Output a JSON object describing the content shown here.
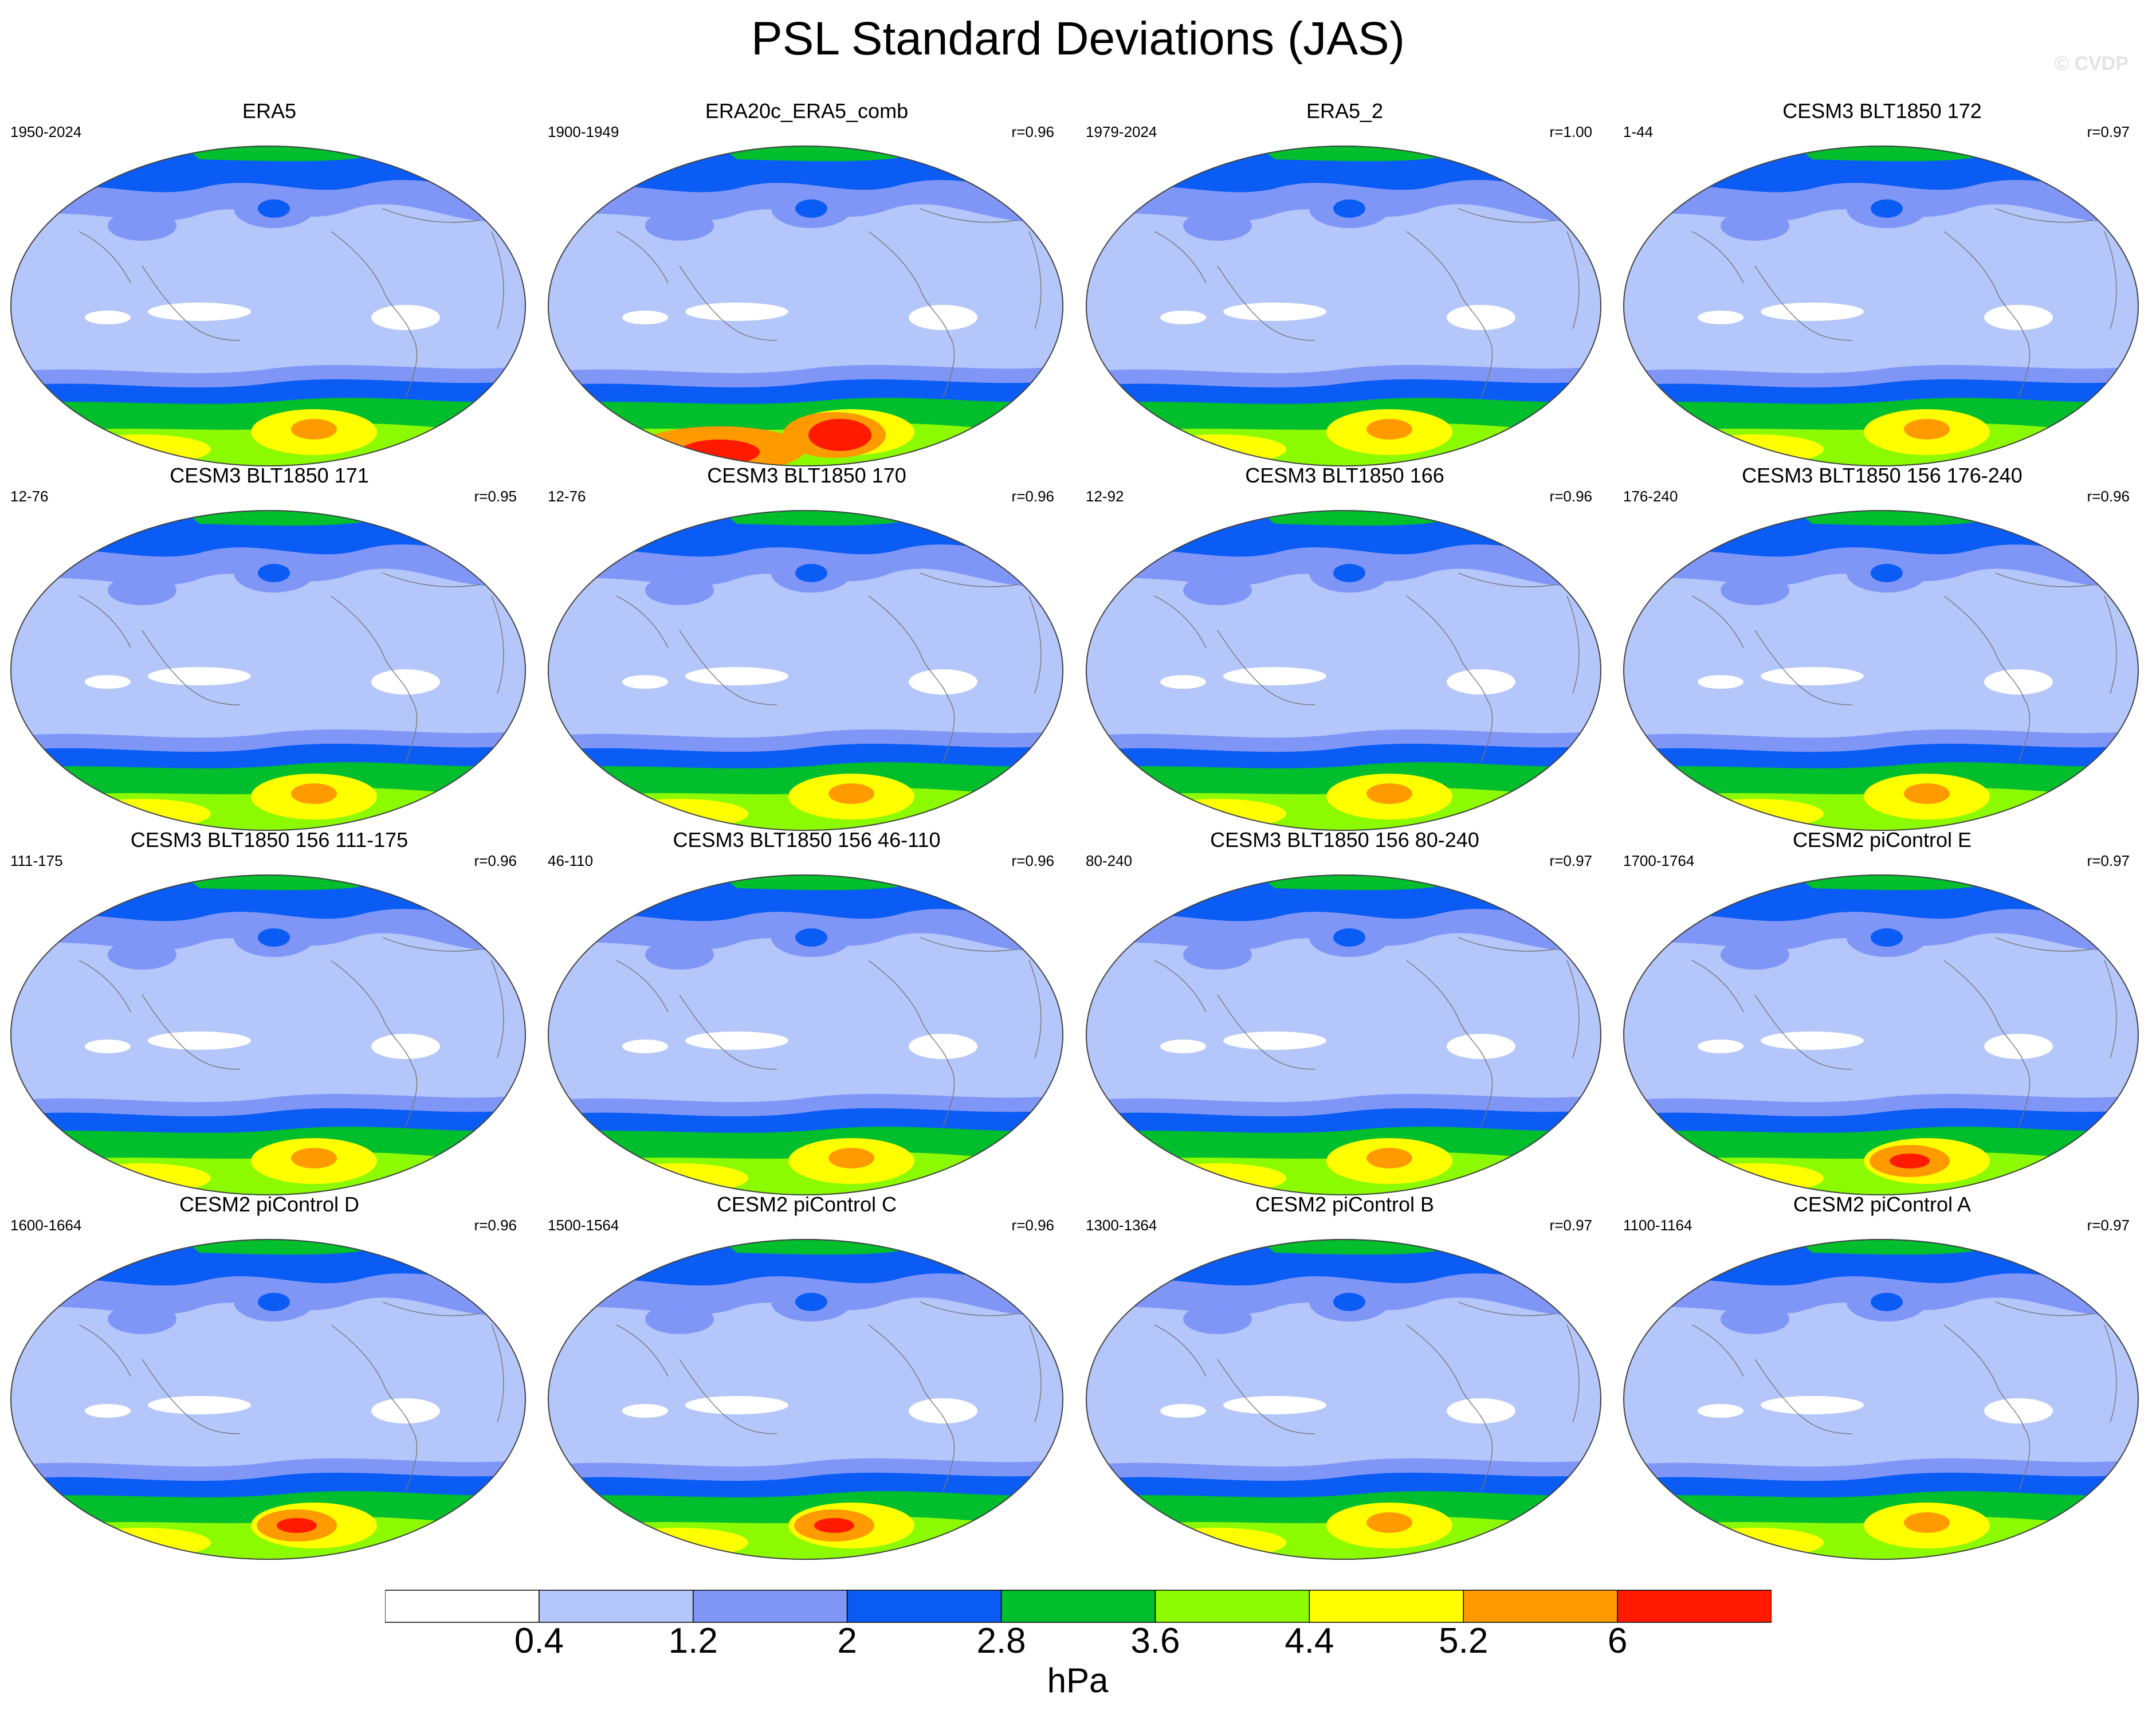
{
  "figure": {
    "title": "PSL Standard Deviations (JAS)",
    "watermark": "© CVDP"
  },
  "panels": [
    {
      "title": "ERA5",
      "years": "1950-2024",
      "r": "",
      "south_max": "mid"
    },
    {
      "title": "ERA20c_ERA5_comb",
      "years": "1900-1949",
      "r": "r=0.96",
      "south_max": "high"
    },
    {
      "title": "ERA5_2",
      "years": "1979-2024",
      "r": "r=1.00",
      "south_max": "mid"
    },
    {
      "title": "CESM3 BLT1850 172",
      "years": "1-44",
      "r": "r=0.97",
      "south_max": "mid"
    },
    {
      "title": "CESM3 BLT1850 171",
      "years": "12-76",
      "r": "r=0.95",
      "south_max": "mid"
    },
    {
      "title": "CESM3 BLT1850 170",
      "years": "12-76",
      "r": "r=0.96",
      "south_max": "mid"
    },
    {
      "title": "CESM3 BLT1850 166",
      "years": "12-92",
      "r": "r=0.96",
      "south_max": "mid"
    },
    {
      "title": "CESM3 BLT1850 156 176-240",
      "years": "176-240",
      "r": "r=0.96",
      "south_max": "mid"
    },
    {
      "title": "CESM3 BLT1850 156 111-175",
      "years": "111-175",
      "r": "r=0.96",
      "south_max": "mid"
    },
    {
      "title": "CESM3 BLT1850 156 46-110",
      "years": "46-110",
      "r": "r=0.96",
      "south_max": "mid"
    },
    {
      "title": "CESM3 BLT1850 156 80-240",
      "years": "80-240",
      "r": "r=0.97",
      "south_max": "mid"
    },
    {
      "title": "CESM2 piControl E",
      "years": "1700-1764",
      "r": "r=0.97",
      "south_max": "peak"
    },
    {
      "title": "CESM2 piControl D",
      "years": "1600-1664",
      "r": "r=0.96",
      "south_max": "peak"
    },
    {
      "title": "CESM2 piControl C",
      "years": "1500-1564",
      "r": "r=0.96",
      "south_max": "peak"
    },
    {
      "title": "CESM2 piControl B",
      "years": "1300-1364",
      "r": "r=0.97",
      "south_max": "mid"
    },
    {
      "title": "CESM2 piControl A",
      "years": "1100-1164",
      "r": "r=0.97",
      "south_max": "mid"
    }
  ],
  "colorbar": {
    "colors": [
      "#ffffff",
      "#b4c6fa",
      "#7f96f7",
      "#0a5cf4",
      "#00be2c",
      "#8cfa00",
      "#ffff00",
      "#ff9a00",
      "#ff1a00"
    ],
    "labels": [
      "0.4",
      "1.2",
      "2",
      "2.8",
      "3.6",
      "4.4",
      "5.2",
      "6"
    ],
    "unit": "hPa"
  }
}
